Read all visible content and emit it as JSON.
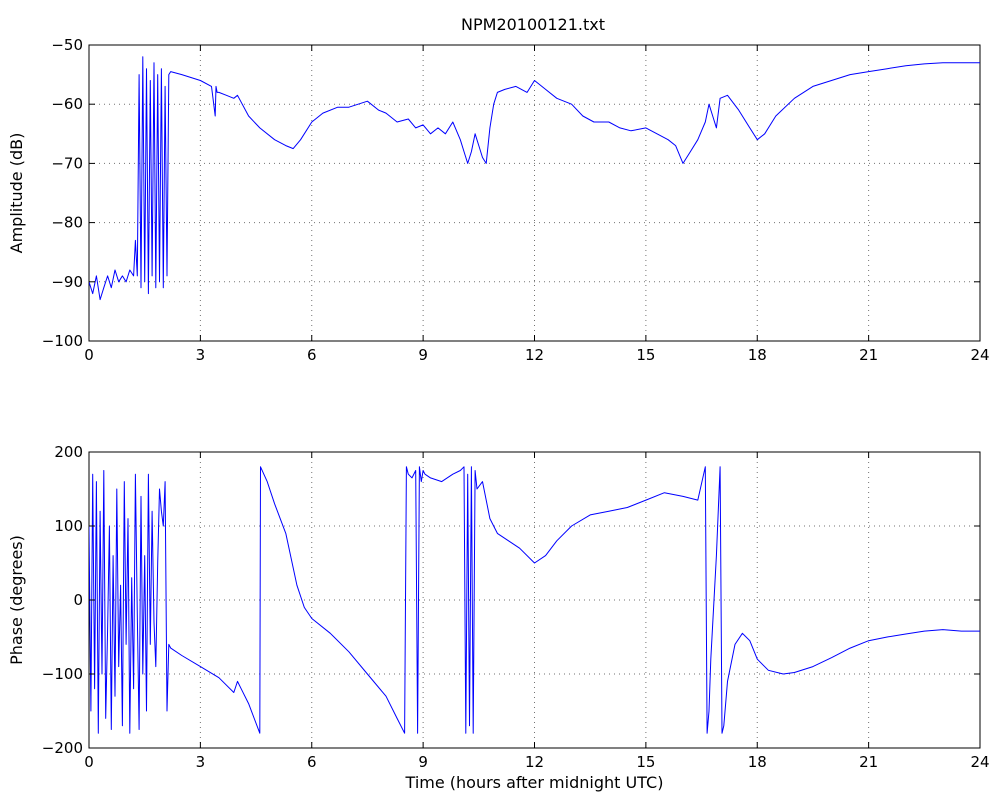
{
  "figure": {
    "title": "NPM20100121.txt",
    "line_color": "#0000ff",
    "grid": true
  },
  "chart_data": [
    {
      "type": "line",
      "name": "amplitude",
      "title": "NPM20100121.txt",
      "xlabel": "",
      "ylabel": "Amplitude (dB)",
      "xlim": [
        0,
        24
      ],
      "ylim": [
        -100,
        -50
      ],
      "xticks": [
        0,
        3,
        6,
        9,
        12,
        15,
        18,
        21,
        24
      ],
      "yticks": [
        -100,
        -90,
        -80,
        -70,
        -60,
        -50
      ],
      "xtick_labels": [
        "0",
        "3",
        "6",
        "9",
        "12",
        "15",
        "18",
        "21",
        "24"
      ],
      "ytick_labels": [
        "−100",
        "−90",
        "−80",
        "−70",
        "−60",
        "−50"
      ],
      "grid": true,
      "series": [
        {
          "color": "#0000ff",
          "x": [
            0,
            0.1,
            0.2,
            0.3,
            0.4,
            0.5,
            0.6,
            0.7,
            0.8,
            0.9,
            1.0,
            1.1,
            1.2,
            1.25,
            1.3,
            1.35,
            1.4,
            1.45,
            1.5,
            1.55,
            1.6,
            1.65,
            1.7,
            1.75,
            1.8,
            1.85,
            1.9,
            1.95,
            2.0,
            2.05,
            2.1,
            2.15,
            2.2,
            2.5,
            3.0,
            3.3,
            3.4,
            3.42,
            3.45,
            3.5,
            3.7,
            3.9,
            4.0,
            4.3,
            4.6,
            5.0,
            5.3,
            5.5,
            5.7,
            6.0,
            6.3,
            6.7,
            7.0,
            7.5,
            7.8,
            8.0,
            8.3,
            8.6,
            8.8,
            9.0,
            9.2,
            9.4,
            9.6,
            9.8,
            10.0,
            10.1,
            10.2,
            10.3,
            10.4,
            10.5,
            10.6,
            10.7,
            10.8,
            10.9,
            11.0,
            11.2,
            11.5,
            11.8,
            12.0,
            12.3,
            12.6,
            13.0,
            13.3,
            13.6,
            14.0,
            14.3,
            14.6,
            15.0,
            15.3,
            15.6,
            15.8,
            16.0,
            16.2,
            16.4,
            16.6,
            16.7,
            16.8,
            16.9,
            17.0,
            17.2,
            17.5,
            17.8,
            18.0,
            18.2,
            18.5,
            19.0,
            19.5,
            20.0,
            20.5,
            21.0,
            21.5,
            22.0,
            22.5,
            23.0,
            23.5,
            24.0
          ],
          "y": [
            -90,
            -92,
            -89,
            -93,
            -91,
            -89,
            -91,
            -88,
            -90,
            -89,
            -90,
            -88,
            -89,
            -83,
            -89,
            -55,
            -91,
            -52,
            -90,
            -54,
            -92,
            -56,
            -89,
            -53,
            -91,
            -55,
            -90,
            -54,
            -91,
            -57,
            -89,
            -55,
            -54.5,
            -55,
            -56,
            -57,
            -62,
            -57,
            -58,
            -58,
            -58.5,
            -59,
            -58.5,
            -62,
            -64,
            -66,
            -67,
            -67.5,
            -66,
            -63,
            -61.5,
            -60.5,
            -60.5,
            -59.5,
            -61,
            -61.5,
            -63,
            -62.5,
            -64,
            -63.5,
            -65,
            -64,
            -65,
            -63,
            -66,
            -68,
            -70,
            -68,
            -65,
            -67,
            -69,
            -70,
            -64,
            -60,
            -58,
            -57.5,
            -57,
            -58,
            -56,
            -57.5,
            -59,
            -60,
            -62,
            -63,
            -63,
            -64,
            -64.5,
            -64,
            -65,
            -66,
            -67,
            -70,
            -68,
            -66,
            -63,
            -60,
            -62,
            -64,
            -59,
            -58.5,
            -61,
            -64,
            -66,
            -65,
            -62,
            -59,
            -57,
            -56,
            -55,
            -54.5,
            -54,
            -53.5,
            -53.2,
            -53,
            -53,
            -53
          ]
        }
      ]
    },
    {
      "type": "line",
      "name": "phase",
      "title": "",
      "xlabel": "Time (hours after midnight UTC)",
      "ylabel": "Phase (degrees)",
      "xlim": [
        0,
        24
      ],
      "ylim": [
        -200,
        200
      ],
      "xticks": [
        0,
        3,
        6,
        9,
        12,
        15,
        18,
        21,
        24
      ],
      "yticks": [
        -200,
        -100,
        0,
        100,
        200
      ],
      "xtick_labels": [
        "0",
        "3",
        "6",
        "9",
        "12",
        "15",
        "18",
        "21",
        "24"
      ],
      "ytick_labels": [
        "−200",
        "−100",
        "0",
        "100",
        "200"
      ],
      "grid": true,
      "series": [
        {
          "color": "#0000ff",
          "x": [
            0,
            0.05,
            0.1,
            0.15,
            0.2,
            0.25,
            0.3,
            0.35,
            0.4,
            0.45,
            0.5,
            0.55,
            0.6,
            0.65,
            0.7,
            0.75,
            0.8,
            0.85,
            0.9,
            0.95,
            1.0,
            1.05,
            1.1,
            1.15,
            1.2,
            1.25,
            1.3,
            1.35,
            1.4,
            1.45,
            1.5,
            1.55,
            1.6,
            1.65,
            1.7,
            1.75,
            1.8,
            1.85,
            1.9,
            1.95,
            2.0,
            2.05,
            2.1,
            2.15,
            2.2,
            2.5,
            3.0,
            3.5,
            3.9,
            4.0,
            4.1,
            4.3,
            4.6,
            4.62,
            4.8,
            5.0,
            5.3,
            5.6,
            5.8,
            6.0,
            6.5,
            7.0,
            7.5,
            8.0,
            8.3,
            8.5,
            8.55,
            8.6,
            8.7,
            8.8,
            8.85,
            8.9,
            8.95,
            9.0,
            9.05,
            9.2,
            9.5,
            9.8,
            10.0,
            10.1,
            10.15,
            10.2,
            10.25,
            10.3,
            10.35,
            10.4,
            10.45,
            10.6,
            10.8,
            11.0,
            11.3,
            11.6,
            12.0,
            12.3,
            12.6,
            13.0,
            13.5,
            14.0,
            14.5,
            15.0,
            15.5,
            16.0,
            16.4,
            16.6,
            16.65,
            16.7,
            16.75,
            16.9,
            17.0,
            17.05,
            17.1,
            17.2,
            17.4,
            17.6,
            17.8,
            18.0,
            18.3,
            18.7,
            19.0,
            19.5,
            20.0,
            20.5,
            21.0,
            21.5,
            22.0,
            22.5,
            23.0,
            23.5,
            24.0
          ],
          "y": [
            100,
            -150,
            170,
            -120,
            160,
            -180,
            120,
            -100,
            175,
            -160,
            -40,
            100,
            -175,
            60,
            -130,
            150,
            -90,
            20,
            -170,
            160,
            -60,
            110,
            -180,
            30,
            -120,
            170,
            -20,
            -175,
            140,
            -100,
            60,
            -150,
            170,
            -60,
            120,
            -30,
            -90,
            50,
            150,
            120,
            100,
            160,
            -150,
            -60,
            -65,
            -75,
            -90,
            -105,
            -125,
            -110,
            -120,
            -140,
            -180,
            180,
            160,
            130,
            90,
            20,
            -10,
            -25,
            -45,
            -70,
            -100,
            -130,
            -160,
            -180,
            180,
            170,
            165,
            175,
            -180,
            180,
            160,
            175,
            170,
            165,
            160,
            170,
            175,
            180,
            -180,
            170,
            -170,
            180,
            -180,
            175,
            150,
            160,
            110,
            90,
            80,
            70,
            50,
            60,
            80,
            100,
            115,
            120,
            125,
            135,
            145,
            140,
            135,
            180,
            -180,
            -150,
            -80,
            60,
            180,
            -180,
            -170,
            -110,
            -60,
            -45,
            -55,
            -80,
            -95,
            -100,
            -98,
            -90,
            -78,
            -65,
            -55,
            -50,
            -46,
            -42,
            -40,
            -42,
            -42
          ]
        }
      ]
    }
  ]
}
